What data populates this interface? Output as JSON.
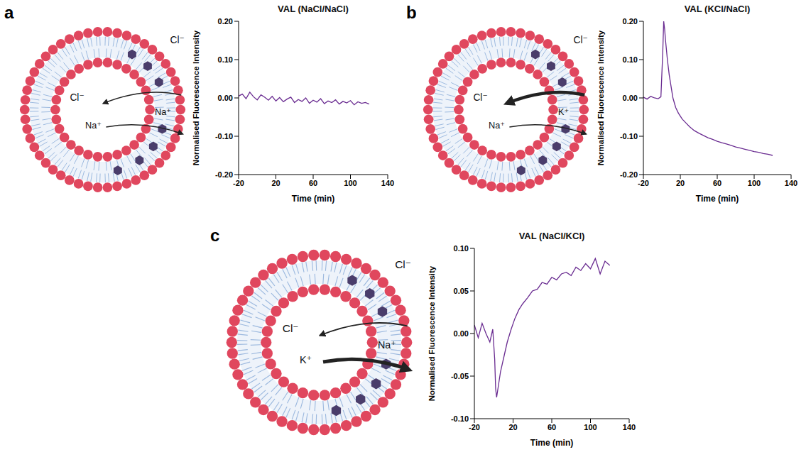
{
  "chart_data": [
    {
      "type": "line",
      "title": "VAL (NaCl/NaCl)",
      "x_label": "Time (min)",
      "y_label": "Normalised Fluorescence Intensity",
      "color": "#6a2c91",
      "x": [
        -20,
        -16,
        -12,
        -8,
        -4,
        0,
        4,
        8,
        12,
        16,
        20,
        24,
        28,
        32,
        36,
        40,
        44,
        48,
        52,
        56,
        60,
        64,
        68,
        72,
        76,
        80,
        84,
        88,
        92,
        96,
        100,
        104,
        108,
        112,
        116,
        120
      ],
      "values": [
        0.005,
        0.01,
        -0.002,
        0.015,
        0.003,
        -0.005,
        0.008,
        0.002,
        -0.006,
        0.004,
        -0.008,
        0.001,
        -0.01,
        -0.003,
        0.002,
        -0.012,
        -0.004,
        -0.009,
        0.0,
        -0.014,
        -0.006,
        -0.011,
        -0.002,
        -0.015,
        -0.008,
        -0.012,
        -0.005,
        -0.016,
        -0.009,
        -0.013,
        -0.007,
        -0.018,
        -0.01,
        -0.014,
        -0.012,
        -0.016
      ],
      "xlim": [
        -20,
        140
      ],
      "xticks": [
        -20,
        20,
        60,
        100,
        140
      ],
      "ylim": [
        -0.2,
        0.2
      ],
      "yticks": [
        {
          "value": -0.2,
          "label": "-0.20"
        },
        {
          "value": -0.1,
          "label": "-0.10"
        },
        {
          "value": 0,
          "label": "0.00"
        },
        {
          "value": 0.1,
          "label": "0.10"
        },
        {
          "value": 0.2,
          "label": "0.20"
        }
      ]
    },
    {
      "type": "line",
      "title": "VAL (KCl/NaCl)",
      "x_label": "Time (min)",
      "y_label": "Normalised Fluorescence Intensity",
      "color": "#6a2c91",
      "x": [
        -20,
        -16,
        -12,
        -8,
        -4,
        -1,
        1,
        2,
        3,
        4,
        6,
        8,
        10,
        12,
        15,
        18,
        22,
        26,
        30,
        35,
        40,
        45,
        50,
        55,
        60,
        65,
        70,
        75,
        80,
        85,
        90,
        95,
        100,
        105,
        110,
        115,
        120
      ],
      "values": [
        0.002,
        -0.003,
        0.004,
        0.0,
        -0.002,
        0.003,
        0.12,
        0.2,
        0.18,
        0.15,
        0.1,
        0.06,
        0.03,
        0.0,
        -0.025,
        -0.04,
        -0.055,
        -0.065,
        -0.075,
        -0.085,
        -0.092,
        -0.098,
        -0.104,
        -0.108,
        -0.113,
        -0.117,
        -0.12,
        -0.124,
        -0.128,
        -0.131,
        -0.134,
        -0.137,
        -0.14,
        -0.142,
        -0.145,
        -0.147,
        -0.15
      ],
      "xlim": [
        -20,
        140
      ],
      "xticks": [
        -20,
        20,
        60,
        100,
        140
      ],
      "ylim": [
        -0.2,
        0.2
      ],
      "yticks": [
        {
          "value": -0.2,
          "label": "-0.20"
        },
        {
          "value": -0.1,
          "label": "-0.10"
        },
        {
          "value": 0,
          "label": "0.00"
        },
        {
          "value": 0.1,
          "label": "0.10"
        },
        {
          "value": 0.2,
          "label": "0.20"
        }
      ]
    },
    {
      "type": "line",
      "title": "VAL (NaCl/KCl)",
      "x_label": "Time (min)",
      "y_label": "Normalised Fluorescence Intensity",
      "color": "#6a2c91",
      "x": [
        -20,
        -16,
        -12,
        -8,
        -4,
        -1,
        1,
        2,
        3,
        5,
        7,
        10,
        14,
        18,
        22,
        26,
        30,
        35,
        40,
        45,
        50,
        55,
        60,
        65,
        70,
        75,
        80,
        85,
        90,
        95,
        100,
        105,
        110,
        115,
        120
      ],
      "values": [
        0.01,
        -0.005,
        0.012,
        0.0,
        -0.01,
        0.005,
        -0.03,
        -0.065,
        -0.075,
        -0.06,
        -0.045,
        -0.03,
        -0.01,
        0.005,
        0.018,
        0.028,
        0.035,
        0.042,
        0.05,
        0.052,
        0.06,
        0.058,
        0.066,
        0.063,
        0.07,
        0.072,
        0.068,
        0.078,
        0.074,
        0.082,
        0.076,
        0.088,
        0.07,
        0.085,
        0.08
      ],
      "xlim": [
        -20,
        140
      ],
      "xticks": [
        -20,
        20,
        60,
        100,
        140
      ],
      "ylim": [
        -0.1,
        0.1
      ],
      "yticks": [
        {
          "value": -0.1,
          "label": "-0.10"
        },
        {
          "value": -0.05,
          "label": "-0.05"
        },
        {
          "value": 0,
          "label": "0.00"
        },
        {
          "value": 0.05,
          "label": "0.05"
        },
        {
          "value": 0.1,
          "label": "0.10"
        }
      ]
    }
  ],
  "panels": [
    {
      "letter": "a",
      "diagram": {
        "outside_label": "Cl⁻",
        "inside_label": "Cl⁻",
        "outside_ion": "Na⁺",
        "inside_ion": "Na⁺"
      }
    },
    {
      "letter": "b",
      "diagram": {
        "outside_label": "Cl⁻",
        "inside_label": "Cl⁻",
        "outside_ion": "K⁺",
        "inside_ion": "Na⁺"
      }
    },
    {
      "letter": "c",
      "diagram": {
        "outside_label": "Cl⁻",
        "inside_label": "Cl⁻",
        "outside_ion": "Na⁺",
        "inside_ion": "K⁺"
      }
    }
  ]
}
